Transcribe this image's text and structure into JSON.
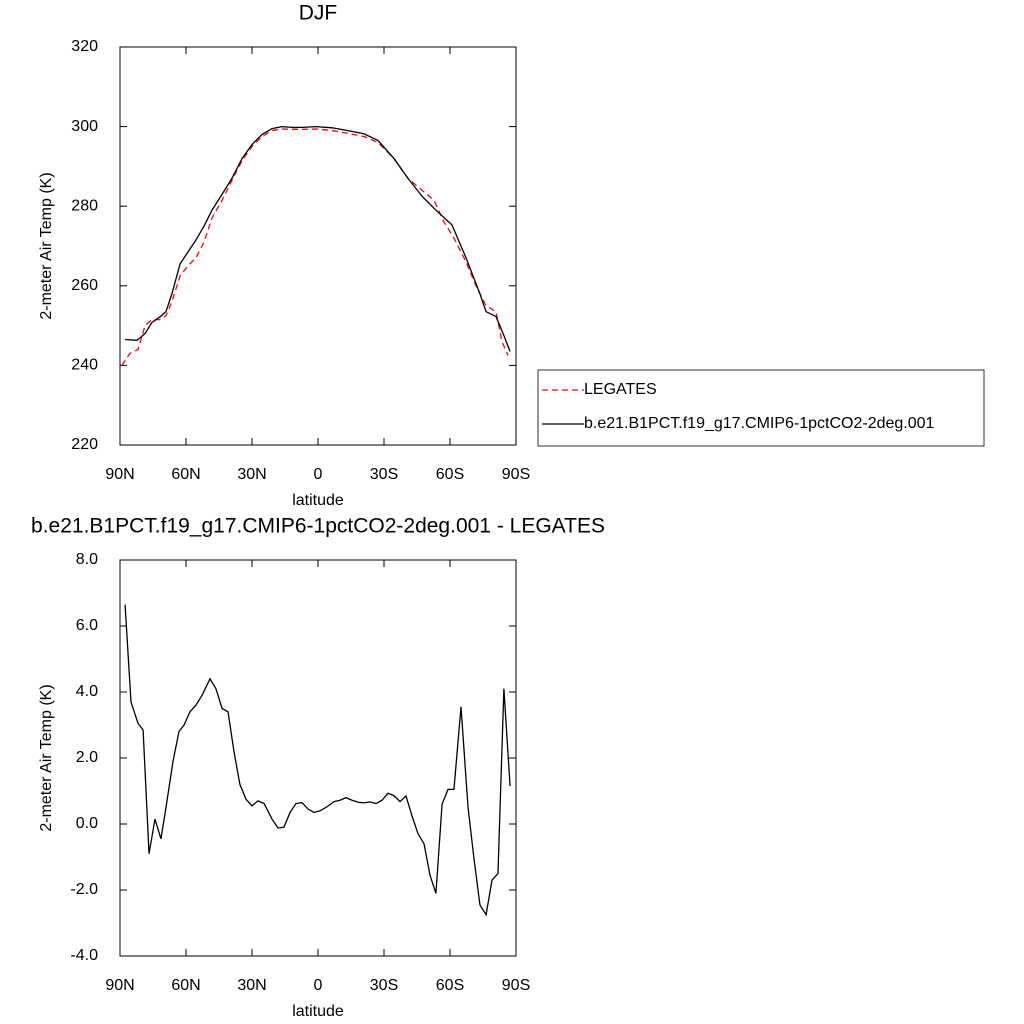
{
  "chart_data": [
    {
      "type": "line",
      "title": "DJF",
      "xlabel": "latitude",
      "ylabel": "2-meter Air Temp (K)",
      "xlim": [
        90,
        -90
      ],
      "xticks": [
        {
          "value": 90,
          "label": "90N"
        },
        {
          "value": 60,
          "label": "60N"
        },
        {
          "value": 30,
          "label": "30N"
        },
        0,
        {
          "value": -30,
          "label": "30S"
        },
        {
          "value": -60,
          "label": "60S"
        },
        {
          "value": -90,
          "label": "90S"
        }
      ],
      "ylim": [
        220,
        320
      ],
      "yticks": [
        220,
        240,
        260,
        280,
        300,
        320
      ],
      "legend": "outside-right",
      "series": [
        {
          "name": "LEGATES",
          "color": "#ff0000",
          "line_style": "dashed",
          "x": [
            89.1,
            85.5,
            81.8,
            78.6,
            75.5,
            71.8,
            69.1,
            66.4,
            62.7,
            59.1,
            55.5,
            51.8,
            48.2,
            43.6,
            39.1,
            34.5,
            30.0,
            25.5,
            20.9,
            16.4,
            7.3,
            0.9,
            -6.4,
            -13.6,
            -20.9,
            -27.3,
            -34.5,
            -40.9,
            -47.3,
            -52.7,
            -57.3,
            -61.8,
            -67.3,
            -71.8,
            -76.4,
            -80.9,
            -83.6,
            -86.4
          ],
          "values": [
            240,
            243,
            244,
            250,
            251.5,
            251.5,
            252.5,
            256,
            262.5,
            265,
            267,
            271,
            277,
            281.5,
            286.5,
            291.5,
            295,
            297.5,
            299,
            299.4,
            299.3,
            299.4,
            299,
            298.3,
            297.5,
            296,
            292,
            287,
            284,
            281.5,
            276,
            272,
            266,
            260,
            255,
            253.5,
            246,
            242.5
          ]
        },
        {
          "name": "b.e21.B1PCT.f19_g17.CMIP6-1pctCO2-2deg.001",
          "color": "#000000",
          "line_style": "solid",
          "x": [
            87.7,
            82.3,
            78.6,
            75.5,
            71.8,
            69.1,
            66.4,
            62.7,
            59.1,
            55.5,
            51.8,
            48.2,
            43.6,
            39.1,
            34.5,
            30.0,
            25.5,
            20.9,
            16.4,
            11.8,
            7.3,
            0.9,
            -6.4,
            -13.6,
            -20.9,
            -27.3,
            -34.5,
            -40.9,
            -47.3,
            -53.6,
            -60.9,
            -67.3,
            -73.6,
            -76.4,
            -80.9,
            -84.5,
            -87.3
          ],
          "values": [
            246.5,
            246.3,
            248,
            250.8,
            252.2,
            253.5,
            258,
            265.5,
            268.5,
            271.5,
            275,
            279,
            283,
            287,
            292,
            295.5,
            298,
            299.5,
            300,
            299.8,
            299.8,
            300,
            299.7,
            299,
            298.2,
            296.5,
            292,
            287,
            282.5,
            279,
            275.3,
            267,
            258,
            253.5,
            252.3,
            247.5,
            243.5
          ]
        }
      ]
    },
    {
      "type": "line",
      "title": "b.e21.B1PCT.f19_g17.CMIP6-1pctCO2-2deg.001 - LEGATES",
      "xlabel": "latitude",
      "ylabel": "2-meter Air Temp (K)",
      "xlim": [
        90,
        -90
      ],
      "xticks": [
        {
          "value": 90,
          "label": "90N"
        },
        {
          "value": 60,
          "label": "60N"
        },
        {
          "value": 30,
          "label": "30N"
        },
        0,
        {
          "value": -30,
          "label": "30S"
        },
        {
          "value": -60,
          "label": "60S"
        },
        {
          "value": -90,
          "label": "90S"
        }
      ],
      "ylim": [
        -4,
        8
      ],
      "yticks": [
        {
          "value": -4,
          "label": "-4.0"
        },
        {
          "value": -2,
          "label": "-2.0"
        },
        {
          "value": 0,
          "label": "0.0"
        },
        {
          "value": 2,
          "label": "2.0"
        },
        {
          "value": 4,
          "label": "4.0"
        },
        {
          "value": 6,
          "label": "6.0"
        },
        {
          "value": 8,
          "label": "8.0"
        }
      ],
      "series": [
        {
          "color": "#000000",
          "line_style": "solid",
          "x": [
            87.7,
            85.0,
            81.8,
            79.5,
            76.8,
            74.1,
            71.4,
            69.1,
            65.9,
            63.2,
            60.9,
            58.2,
            55.5,
            52.7,
            49.1,
            46.4,
            43.6,
            40.9,
            38.2,
            35.5,
            32.7,
            30.0,
            27.3,
            24.5,
            20.9,
            18.2,
            15.5,
            12.7,
            10.0,
            7.3,
            4.5,
            1.8,
            -0.9,
            -3.6,
            -7.3,
            -10.0,
            -12.7,
            -15.5,
            -18.2,
            -20.9,
            -23.6,
            -26.4,
            -29.1,
            -31.8,
            -34.5,
            -37.3,
            -40.0,
            -42.7,
            -45.5,
            -48.2,
            -50.9,
            -53.6,
            -56.4,
            -59.1,
            -61.8,
            -65.0,
            -68.2,
            -70.9,
            -73.6,
            -76.4,
            -79.1,
            -81.8,
            -84.5,
            -87.3
          ],
          "values": [
            6.65,
            3.7,
            3.05,
            2.85,
            -0.9,
            0.15,
            -0.45,
            0.5,
            1.9,
            2.8,
            3.0,
            3.4,
            3.6,
            3.9,
            4.4,
            4.1,
            3.5,
            3.4,
            2.2,
            1.2,
            0.75,
            0.55,
            0.7,
            0.62,
            0.15,
            -0.12,
            -0.1,
            0.35,
            0.62,
            0.65,
            0.45,
            0.35,
            0.4,
            0.5,
            0.68,
            0.72,
            0.8,
            0.72,
            0.66,
            0.64,
            0.67,
            0.62,
            0.72,
            0.93,
            0.86,
            0.68,
            0.85,
            0.25,
            -0.3,
            -0.6,
            -1.55,
            -2.1,
            0.6,
            1.05,
            1.05,
            3.55,
            0.5,
            -1.05,
            -2.45,
            -2.75,
            -1.7,
            -1.5,
            4.1,
            1.15
          ]
        }
      ]
    }
  ]
}
